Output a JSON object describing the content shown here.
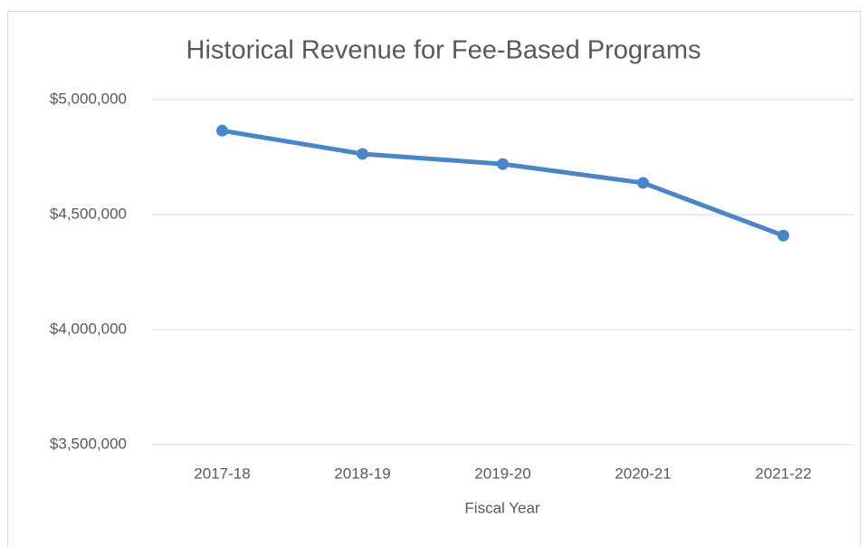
{
  "chart_data": {
    "type": "line",
    "title": "Historical Revenue for Fee-Based Programs",
    "x_label": "Fiscal Year",
    "categories": [
      "2017-18",
      "2018-19",
      "2019-20",
      "2020-21",
      "2021-22"
    ],
    "values": [
      4865000,
      4764000,
      4720000,
      4638000,
      4409000
    ],
    "color": "#4a86c5",
    "ylim": [
      3500000,
      5000000
    ],
    "yticks": [
      {
        "value": 3500000,
        "label": "$3,500,000"
      },
      {
        "value": 4000000,
        "label": "$4,000,000"
      },
      {
        "value": 4500000,
        "label": "$4,500,000"
      },
      {
        "value": 5000000,
        "label": "$5,000,000"
      }
    ],
    "grid": true
  }
}
